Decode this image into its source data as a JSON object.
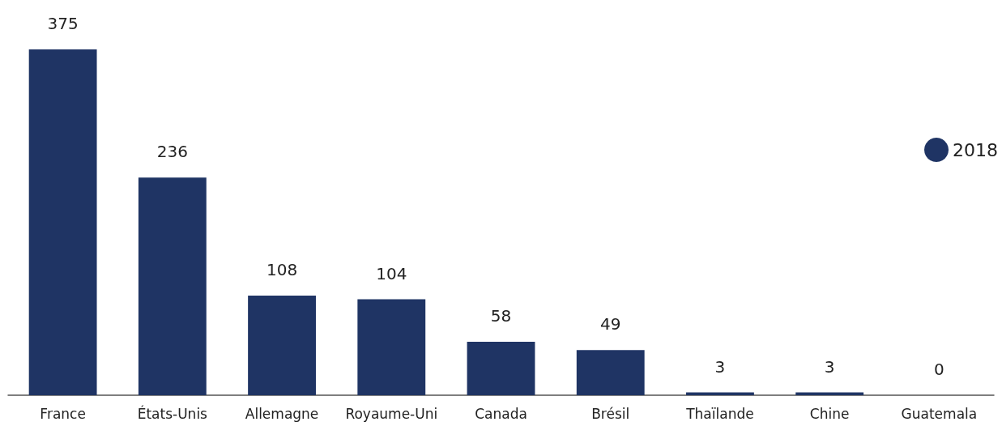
{
  "chart_data": {
    "type": "bar",
    "categories": [
      "France",
      "États-Unis",
      "Allemagne",
      "Royaume-Uni",
      "Canada",
      "Brésil",
      "Thaïlande",
      "Chine",
      "Guatemala"
    ],
    "series": [
      {
        "name": "2018",
        "color": "#1f3464",
        "values": [
          375,
          236,
          108,
          104,
          58,
          49,
          3,
          3,
          0
        ]
      }
    ],
    "data_labels": true,
    "legend": "right",
    "tick_labels": "x"
  }
}
